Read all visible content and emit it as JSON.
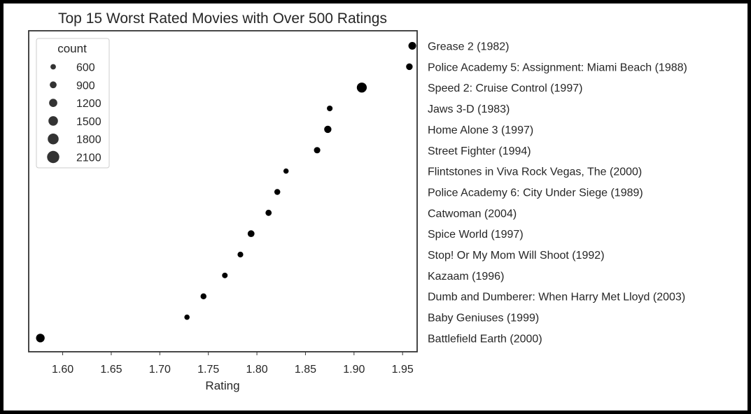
{
  "chart_data": {
    "type": "scatter",
    "title": "Top 15 Worst Rated Movies with Over 500 Ratings",
    "xlabel": "Rating",
    "ylabel": "",
    "xlim": [
      1.565,
      1.965
    ],
    "xticks": [
      "1.60",
      "1.65",
      "1.70",
      "1.75",
      "1.80",
      "1.85",
      "1.90",
      "1.95"
    ],
    "xtick_values": [
      1.6,
      1.65,
      1.7,
      1.75,
      1.8,
      1.85,
      1.9,
      1.95
    ],
    "grid": false,
    "legend": {
      "title": "count",
      "placement": "top-left",
      "entries": [
        {
          "label": "600",
          "value": 600
        },
        {
          "label": "900",
          "value": 900
        },
        {
          "label": "1200",
          "value": 1200
        },
        {
          "label": "1500",
          "value": 1500
        },
        {
          "label": "1800",
          "value": 1800
        },
        {
          "label": "2100",
          "value": 2100
        }
      ]
    },
    "points": [
      {
        "movie": "Grease 2 (1982)",
        "rating": 1.96,
        "count": 1100
      },
      {
        "movie": "Police Academy 5: Assignment: Miami Beach (1988)",
        "rating": 1.957,
        "count": 850
      },
      {
        "movie": "Speed 2: Cruise Control (1997)",
        "rating": 1.908,
        "count": 1600
      },
      {
        "movie": "Jaws 3-D (1983)",
        "rating": 1.875,
        "count": 650
      },
      {
        "movie": "Home Alone 3 (1997)",
        "rating": 1.873,
        "count": 1000
      },
      {
        "movie": "Street Fighter (1994)",
        "rating": 1.862,
        "count": 800
      },
      {
        "movie": "Flintstones in Viva Rock Vegas, The (2000)",
        "rating": 1.83,
        "count": 550
      },
      {
        "movie": "Police Academy 6: City Under Siege (1989)",
        "rating": 1.821,
        "count": 700
      },
      {
        "movie": "Catwoman (2004)",
        "rating": 1.812,
        "count": 750
      },
      {
        "movie": "Spice World (1997)",
        "rating": 1.794,
        "count": 900
      },
      {
        "movie": "Stop! Or My Mom Will Shoot (1992)",
        "rating": 1.783,
        "count": 650
      },
      {
        "movie": "Kazaam (1996)",
        "rating": 1.767,
        "count": 620
      },
      {
        "movie": "Dumb and Dumberer: When Harry Met Lloyd (2003)",
        "rating": 1.745,
        "count": 700
      },
      {
        "movie": "Baby Geniuses (1999)",
        "rating": 1.728,
        "count": 560
      },
      {
        "movie": "Battlefield Earth (2000)",
        "rating": 1.577,
        "count": 1300
      }
    ]
  },
  "colors": {
    "marker": "#000000",
    "legend_marker": "#333333",
    "text": "#262626",
    "axes_edge": "#333333",
    "frame": "#000000"
  }
}
